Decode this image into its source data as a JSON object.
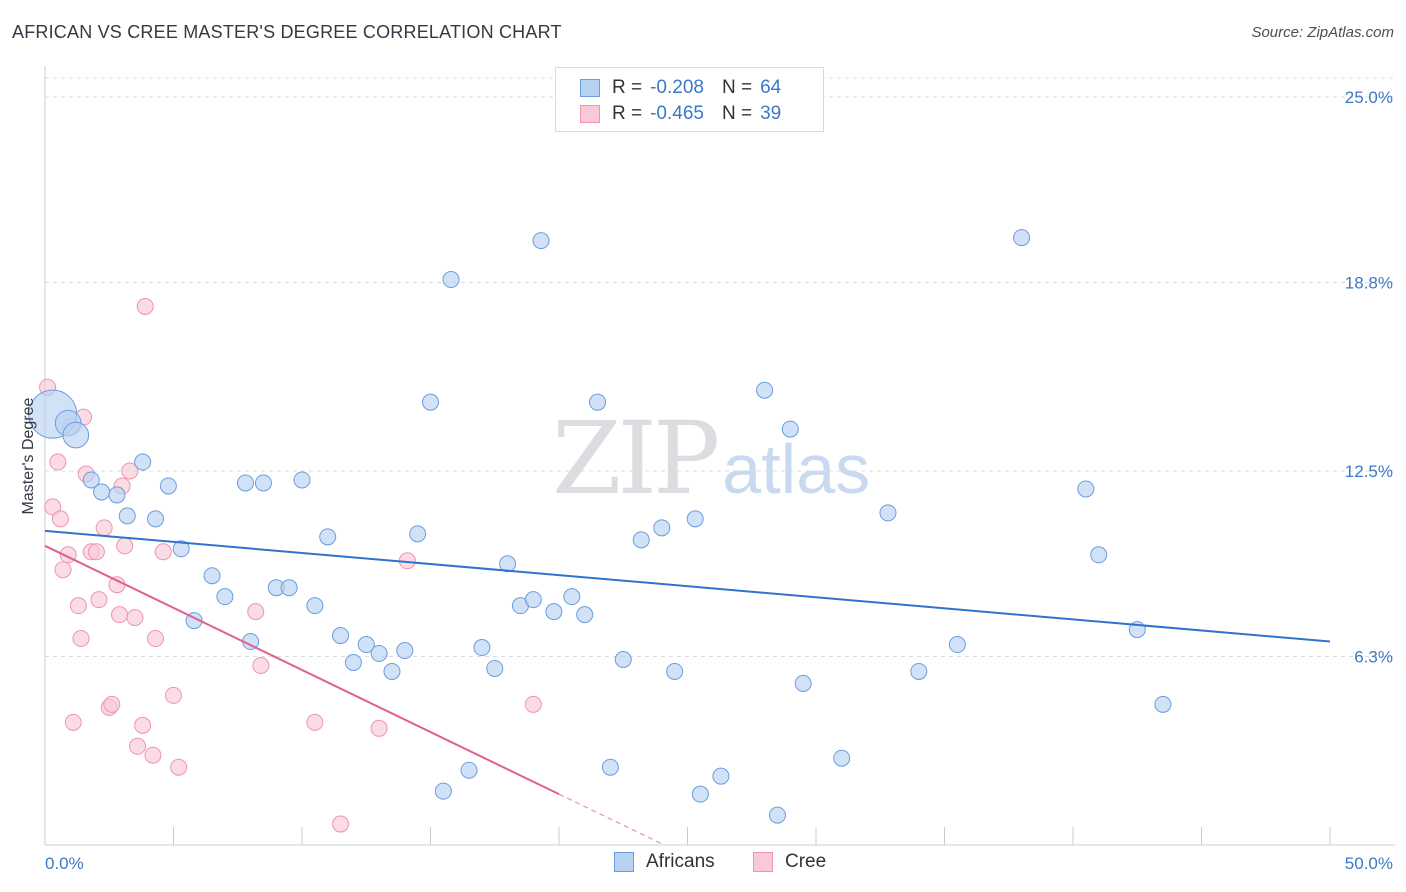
{
  "title": "AFRICAN VS CREE MASTER'S DEGREE CORRELATION CHART",
  "source": "Source: ZipAtlas.com",
  "watermark": {
    "zip": "ZIP",
    "atlas": "atlas"
  },
  "legend": {
    "africans": {
      "r_label": "R =",
      "r_value": "-0.208",
      "n_label": "N =",
      "n_value": "64"
    },
    "cree": {
      "r_label": "R =",
      "r_value": "-0.465",
      "n_label": "N =",
      "n_value": "39"
    }
  },
  "bottom_legend": {
    "africans": "Africans",
    "cree": "Cree"
  },
  "colors": {
    "africans_fill": "#b8d3f2",
    "africans_stroke": "#6a9de0",
    "africans_line": "#2f73cf",
    "cree_fill": "#f9c9d7",
    "cree_stroke": "#ec95b0",
    "cree_line": "#e0628c",
    "tick_text": "#3d78c6",
    "grid": "#d9dce1"
  },
  "chart_data": {
    "type": "scatter",
    "ylabel": "Master's Degree",
    "xlim": [
      0,
      50
    ],
    "ylim": [
      0,
      25
    ],
    "x_tick_labels": [
      "0.0%",
      "50.0%"
    ],
    "y_ticks": [
      6.3,
      12.5,
      18.8,
      25.0
    ],
    "y_tick_labels": [
      "6.3%",
      "12.5%",
      "18.8%",
      "25.0%"
    ],
    "grid": "horizontal dashed",
    "series": [
      {
        "name": "Africans",
        "trendline": {
          "x": [
            0,
            50
          ],
          "y": [
            10.5,
            6.8
          ]
        },
        "points": [
          [
            0.3,
            14.4,
            3
          ],
          [
            0.9,
            14.1,
            1.6
          ],
          [
            1.2,
            13.7,
            1.6
          ],
          [
            1.8,
            12.2,
            1
          ],
          [
            2.2,
            11.8,
            1
          ],
          [
            2.8,
            11.7,
            1
          ],
          [
            3.2,
            11.0,
            1
          ],
          [
            3.8,
            12.8,
            1
          ],
          [
            4.3,
            10.9,
            1
          ],
          [
            4.8,
            12.0,
            1
          ],
          [
            5.3,
            9.9,
            1
          ],
          [
            5.8,
            7.5,
            1
          ],
          [
            6.5,
            9.0,
            1
          ],
          [
            7.0,
            8.3,
            1
          ],
          [
            7.8,
            12.1,
            1
          ],
          [
            8.0,
            6.8,
            1
          ],
          [
            8.5,
            12.1,
            1
          ],
          [
            9.0,
            8.6,
            1
          ],
          [
            9.5,
            8.6,
            1
          ],
          [
            10.0,
            12.2,
            1
          ],
          [
            10.5,
            8.0,
            1
          ],
          [
            11.0,
            10.3,
            1
          ],
          [
            11.5,
            7.0,
            1
          ],
          [
            12.0,
            6.1,
            1
          ],
          [
            12.5,
            6.7,
            1
          ],
          [
            13.0,
            6.4,
            1
          ],
          [
            13.5,
            5.8,
            1
          ],
          [
            14.0,
            6.5,
            1
          ],
          [
            14.5,
            10.4,
            1
          ],
          [
            15.0,
            14.8,
            1
          ],
          [
            15.5,
            1.8,
            1
          ],
          [
            15.8,
            18.9,
            1
          ],
          [
            16.5,
            2.5,
            1
          ],
          [
            17.0,
            6.6,
            1
          ],
          [
            17.5,
            5.9,
            1
          ],
          [
            18.0,
            9.4,
            1
          ],
          [
            18.5,
            8.0,
            1
          ],
          [
            19.0,
            8.2,
            1
          ],
          [
            19.3,
            20.2,
            1
          ],
          [
            19.8,
            7.8,
            1
          ],
          [
            20.5,
            8.3,
            1
          ],
          [
            21.0,
            7.7,
            1
          ],
          [
            21.5,
            14.8,
            1
          ],
          [
            22.0,
            2.6,
            1
          ],
          [
            22.5,
            6.2,
            1
          ],
          [
            23.2,
            10.2,
            1
          ],
          [
            24.0,
            10.6,
            1
          ],
          [
            24.5,
            5.8,
            1
          ],
          [
            25.3,
            10.9,
            1
          ],
          [
            25.5,
            1.7,
            1
          ],
          [
            26.3,
            2.3,
            1
          ],
          [
            28.0,
            15.2,
            1
          ],
          [
            28.5,
            1.0,
            1
          ],
          [
            29.0,
            13.9,
            1
          ],
          [
            29.5,
            5.4,
            1
          ],
          [
            31.0,
            2.9,
            1
          ],
          [
            32.8,
            11.1,
            1
          ],
          [
            34.0,
            5.8,
            1
          ],
          [
            35.5,
            6.7,
            1
          ],
          [
            38.0,
            20.3,
            1
          ],
          [
            40.5,
            11.9,
            1
          ],
          [
            41.0,
            9.7,
            1
          ],
          [
            42.5,
            7.2,
            1
          ],
          [
            43.5,
            4.7,
            1
          ]
        ]
      },
      {
        "name": "Cree",
        "trendline": {
          "x": [
            0,
            20
          ],
          "y": [
            10.0,
            1.7
          ]
        },
        "points": [
          [
            0.1,
            15.3,
            1
          ],
          [
            0.3,
            11.3,
            1
          ],
          [
            0.5,
            12.8,
            1
          ],
          [
            0.6,
            10.9,
            1
          ],
          [
            0.7,
            9.2,
            1
          ],
          [
            0.9,
            9.7,
            1
          ],
          [
            1.0,
            14.0,
            1
          ],
          [
            1.1,
            4.1,
            1
          ],
          [
            1.3,
            8.0,
            1
          ],
          [
            1.4,
            6.9,
            1
          ],
          [
            1.5,
            14.3,
            1
          ],
          [
            1.6,
            12.4,
            1
          ],
          [
            1.8,
            9.8,
            1
          ],
          [
            2.0,
            9.8,
            1
          ],
          [
            2.1,
            8.2,
            1
          ],
          [
            2.3,
            10.6,
            1
          ],
          [
            2.5,
            4.6,
            1
          ],
          [
            2.6,
            4.7,
            1
          ],
          [
            2.8,
            8.7,
            1
          ],
          [
            2.9,
            7.7,
            1
          ],
          [
            3.0,
            12.0,
            1
          ],
          [
            3.1,
            10.0,
            1
          ],
          [
            3.3,
            12.5,
            1
          ],
          [
            3.5,
            7.6,
            1
          ],
          [
            3.6,
            3.3,
            1
          ],
          [
            3.8,
            4.0,
            1
          ],
          [
            3.9,
            18.0,
            1
          ],
          [
            4.2,
            3.0,
            1
          ],
          [
            4.3,
            6.9,
            1
          ],
          [
            4.6,
            9.8,
            1
          ],
          [
            5.0,
            5.0,
            1
          ],
          [
            5.2,
            2.6,
            1
          ],
          [
            8.2,
            7.8,
            1
          ],
          [
            8.4,
            6.0,
            1
          ],
          [
            10.5,
            4.1,
            1
          ],
          [
            11.5,
            0.7,
            1
          ],
          [
            13.0,
            3.9,
            1
          ],
          [
            14.1,
            9.5,
            1
          ],
          [
            19.0,
            4.7,
            1
          ]
        ]
      }
    ]
  }
}
